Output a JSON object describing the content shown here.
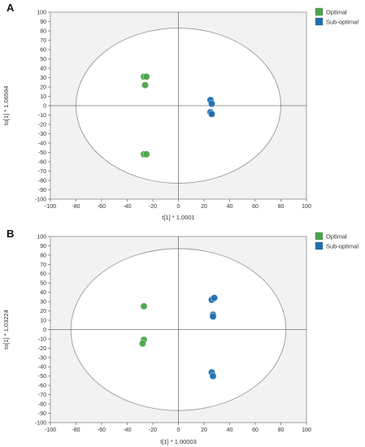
{
  "chart_data": [
    {
      "type": "scatter",
      "panel_label": "A",
      "xlabel": "t[1] * 1.0001",
      "ylabel": "to[1] * 1.06594",
      "xlim": [
        -100,
        100
      ],
      "ylim": [
        -100,
        100
      ],
      "xticks": [
        -100,
        -80,
        -60,
        -40,
        -20,
        0,
        20,
        40,
        60,
        80,
        100
      ],
      "yticks": [
        -100,
        -90,
        -80,
        -70,
        -60,
        -50,
        -40,
        -30,
        -20,
        -10,
        0,
        10,
        20,
        30,
        40,
        50,
        60,
        70,
        80,
        90,
        100
      ],
      "ellipse": {
        "rx": 80,
        "ry": 83
      },
      "grid": false,
      "legend_position": "top-right",
      "series": [
        {
          "name": "Optimal",
          "color": "#4aa548",
          "x": [
            -27,
            -25,
            -26,
            -27,
            -25
          ],
          "y": [
            31,
            31,
            22,
            -52,
            -52
          ]
        },
        {
          "name": "Sub-optimal",
          "color": "#1f6eb0",
          "x": [
            25,
            26,
            25,
            26
          ],
          "y": [
            6,
            2,
            -7,
            -9
          ]
        }
      ]
    },
    {
      "type": "scatter",
      "panel_label": "B",
      "xlabel": "t[1] * 1.00003",
      "ylabel": "to[1] * 1.03224",
      "xlim": [
        -100,
        100
      ],
      "ylim": [
        -100,
        100
      ],
      "xticks": [
        -100,
        -80,
        -60,
        -40,
        -20,
        0,
        20,
        40,
        60,
        80,
        100
      ],
      "yticks": [
        -100,
        -90,
        -80,
        -70,
        -60,
        -50,
        -40,
        -30,
        -20,
        -10,
        0,
        10,
        20,
        30,
        40,
        50,
        60,
        70,
        80,
        90,
        100
      ],
      "ellipse": {
        "rx": 84,
        "ry": 87
      },
      "grid": false,
      "legend_position": "top-right",
      "series": [
        {
          "name": "Optimal",
          "color": "#4aa548",
          "x": [
            -27,
            -27,
            -28
          ],
          "y": [
            25,
            -11,
            -15
          ]
        },
        {
          "name": "Sub-optimal",
          "color": "#1f6eb0",
          "x": [
            26,
            28,
            27,
            27,
            26,
            27
          ],
          "y": [
            32,
            34,
            16,
            14,
            -46,
            -50
          ]
        }
      ]
    }
  ]
}
